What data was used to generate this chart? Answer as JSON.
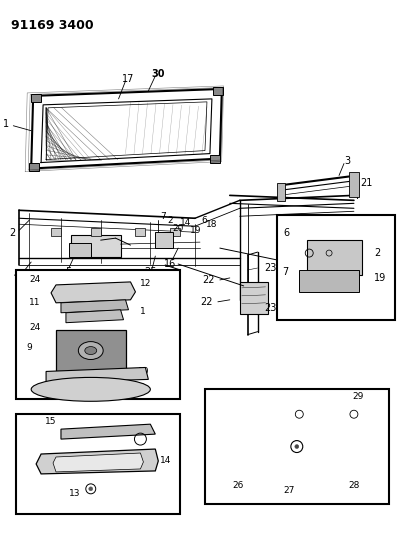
{
  "title": "91169 3400",
  "bg": "#ffffff",
  "lc": "#000000",
  "fig_w": 3.99,
  "fig_h": 5.33,
  "dpi": 100
}
